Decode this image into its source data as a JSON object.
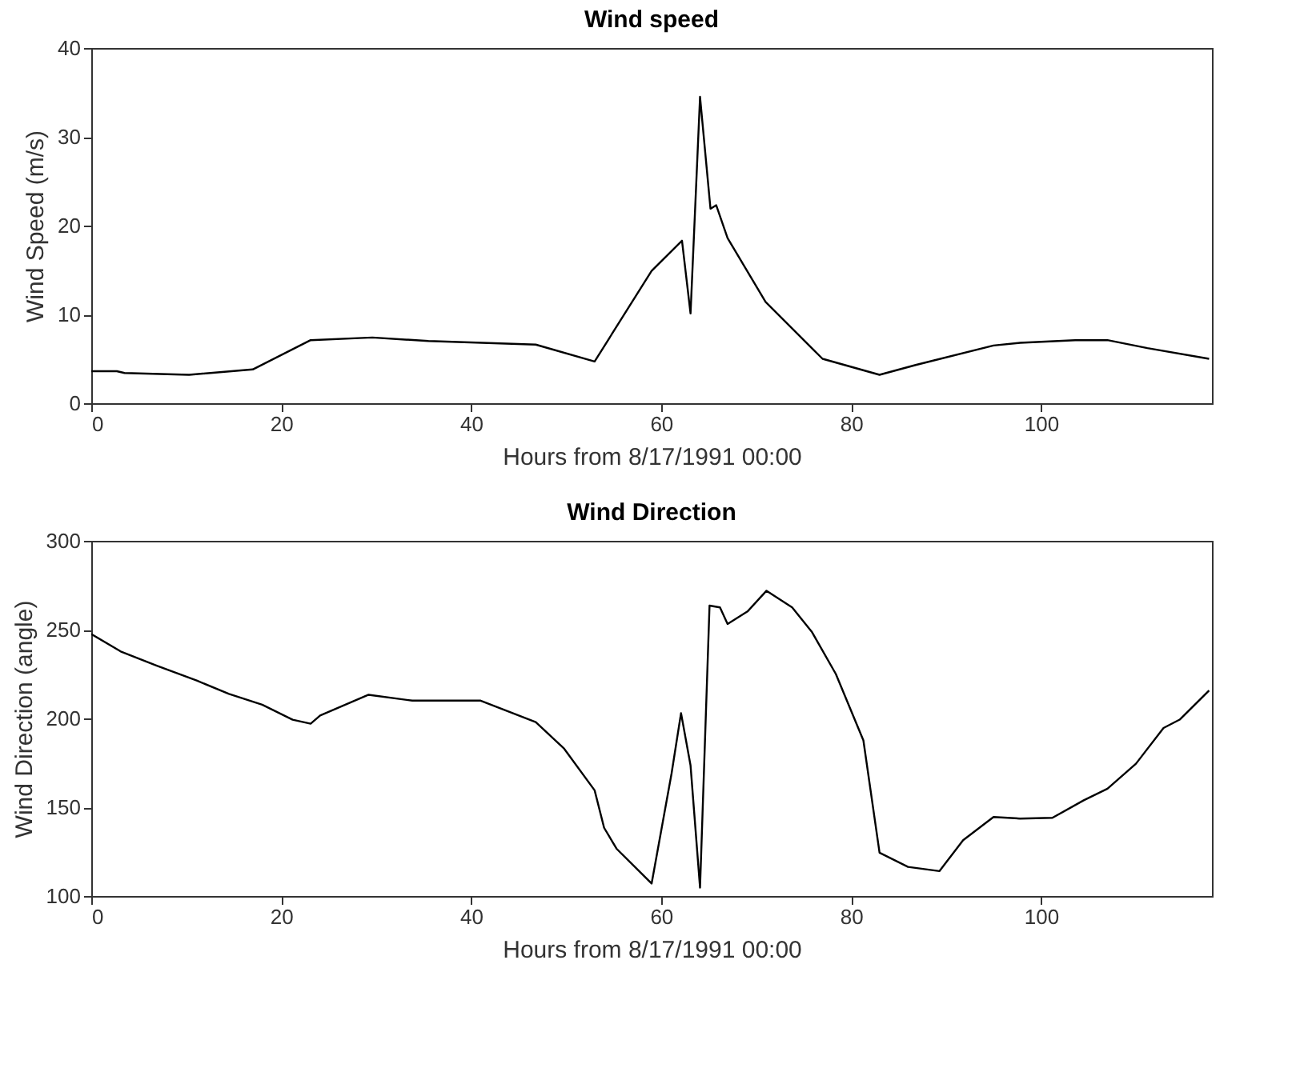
{
  "chart_data": [
    {
      "type": "line",
      "title": "Wind speed",
      "xlabel": "Hours from 8/17/1991 00:00",
      "ylabel": "Wind Speed (m/s)",
      "x": [
        0,
        2.7,
        3.5,
        10.3,
        17,
        23.1,
        29.6,
        35.5,
        46.8,
        53,
        59,
        62.2,
        63.1,
        64.1,
        65.2,
        65.8,
        67,
        71,
        77,
        83,
        86.8,
        95,
        97.8,
        103.6,
        107,
        111.2,
        117.7
      ],
      "series": [
        {
          "color": "#000000",
          "values": [
            3.6,
            3.6,
            3.4,
            3.2,
            3.8,
            7.1,
            7.4,
            7.0,
            6.6,
            4.7,
            14.9,
            18.3,
            10.1,
            34.5,
            21.9,
            22.3,
            18.6,
            11.4,
            5.0,
            3.2,
            4.3,
            6.5,
            6.8,
            7.1,
            7.1,
            6.2,
            5.0
          ]
        }
      ],
      "xlim": [
        0,
        118
      ],
      "xticks": [
        0,
        20,
        40,
        60,
        80,
        100
      ],
      "ylim": [
        0,
        40
      ],
      "yticks": [
        0,
        10,
        20,
        30,
        40
      ],
      "grid": false,
      "legend": false,
      "marker": "none",
      "line_style": "solid"
    },
    {
      "type": "line",
      "title": "Wind Direction",
      "xlabel": "Hours from 8/17/1991 00:00",
      "ylabel": "Wind Direction (angle)",
      "x": [
        0,
        3.1,
        6.9,
        11.1,
        14.5,
        18,
        21.2,
        23.1,
        24.1,
        29.2,
        33.8,
        41,
        46.8,
        49.8,
        53,
        54,
        55.3,
        59,
        61.1,
        62.1,
        63.1,
        64.1,
        65.1,
        66.2,
        67,
        69.1,
        71.1,
        73.8,
        75.9,
        78.4,
        81.3,
        83,
        86,
        89.3,
        91.8,
        95,
        97.8,
        101.2,
        104.5,
        107,
        110,
        112.9,
        114.6,
        117.7
      ],
      "series": [
        {
          "color": "#000000",
          "values": [
            247.5,
            237.7,
            229.7,
            221.3,
            213.8,
            207.7,
            199.3,
            197,
            201.6,
            213.3,
            210,
            210,
            197.9,
            182.9,
            159.5,
            138.4,
            126.7,
            107,
            168.9,
            203,
            173.5,
            104.7,
            263.5,
            262.5,
            253.2,
            260.2,
            271.9,
            262.5,
            248.5,
            225,
            187.6,
            124.4,
            116.4,
            114,
            131.4,
            144.5,
            143.6,
            144,
            153.9,
            160.4,
            174.5,
            194.6,
            199.3,
            215.7
          ]
        }
      ],
      "xlim": [
        0,
        118
      ],
      "xticks": [
        0,
        20,
        40,
        60,
        80,
        100
      ],
      "ylim": [
        100,
        300
      ],
      "yticks": [
        100,
        150,
        200,
        250,
        300
      ],
      "grid": false,
      "legend": false,
      "marker": "none",
      "line_style": "solid"
    }
  ]
}
